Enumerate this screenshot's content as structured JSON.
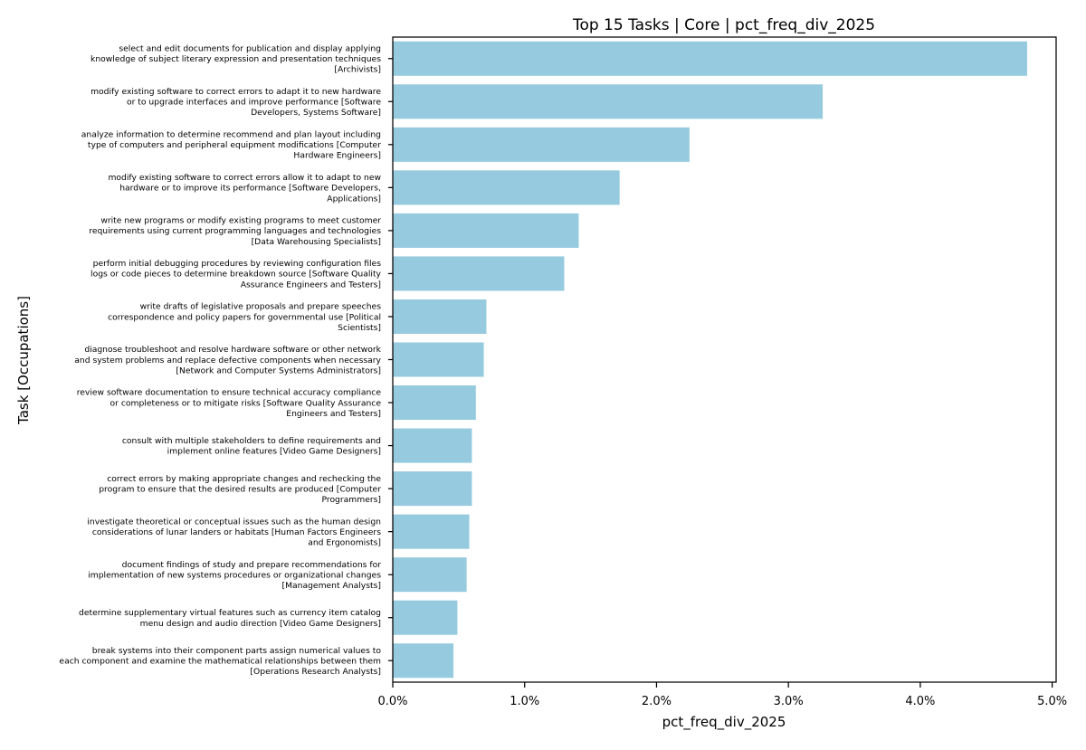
{
  "chart_data": {
    "type": "bar",
    "orientation": "horizontal",
    "title": "Top 15 Tasks | Core | pct_freq_div_2025",
    "xlabel": "pct_freq_div_2025",
    "ylabel": "Task [Occupations]",
    "xlim": [
      0,
      5.03
    ],
    "x_ticks": [
      0,
      1,
      2,
      3,
      4,
      5
    ],
    "x_tick_labels": [
      "0.0%",
      "1.0%",
      "2.0%",
      "3.0%",
      "4.0%",
      "5.0%"
    ],
    "grid": false,
    "bar_color": "#95CADF",
    "categories": [
      [
        "select and edit documents for publication and display applying",
        "knowledge of subject literary expression and presentation techniques",
        "[Archivists]"
      ],
      [
        "modify existing software to correct errors to adapt it to new hardware",
        "or to upgrade interfaces and improve performance  [Software",
        "Developers, Systems Software]"
      ],
      [
        "analyze information to determine recommend and plan layout including",
        "type of computers and peripheral equipment modifications  [Computer",
        "Hardware Engineers]"
      ],
      [
        "modify existing software to correct errors allow it to adapt to new",
        "hardware or to improve its performance  [Software Developers,",
        "Applications]"
      ],
      [
        "write new programs or modify existing programs to meet customer",
        "requirements using current programming languages and technologies",
        "[Data Warehousing Specialists]"
      ],
      [
        "perform initial debugging procedures by reviewing configuration files",
        "logs or code pieces to determine breakdown source  [Software Quality",
        "Assurance Engineers and Testers]"
      ],
      [
        "write drafts of legislative proposals and prepare speeches",
        "correspondence and policy papers for governmental use  [Political",
        "Scientists]"
      ],
      [
        "diagnose troubleshoot and resolve hardware software or other network",
        "and system problems and replace defective components when necessary",
        "[Network and Computer Systems Administrators]"
      ],
      [
        "review software documentation to ensure technical accuracy compliance",
        "or completeness or to mitigate risks  [Software Quality Assurance",
        "Engineers and Testers]"
      ],
      [
        "consult with multiple stakeholders to define requirements and",
        "implement online features  [Video Game Designers]"
      ],
      [
        "correct errors by making appropriate changes and rechecking the",
        "program to ensure that the desired results are produced  [Computer",
        "Programmers]"
      ],
      [
        "investigate theoretical or conceptual issues such as the human design",
        "considerations of lunar landers or habitats  [Human Factors Engineers",
        "and Ergonomists]"
      ],
      [
        "document findings of study and prepare recommendations for",
        "implementation of new systems procedures or organizational changes",
        "[Management Analysts]"
      ],
      [
        "determine supplementary virtual features such as currency item catalog",
        "menu design and audio direction  [Video Game Designers]"
      ],
      [
        "break systems into their component parts assign numerical values to",
        "each component and examine the mathematical relationships between them",
        "[Operations Research Analysts]"
      ]
    ],
    "values": [
      4.81,
      3.26,
      2.25,
      1.72,
      1.41,
      1.3,
      0.71,
      0.69,
      0.63,
      0.6,
      0.6,
      0.58,
      0.56,
      0.49,
      0.46
    ]
  }
}
